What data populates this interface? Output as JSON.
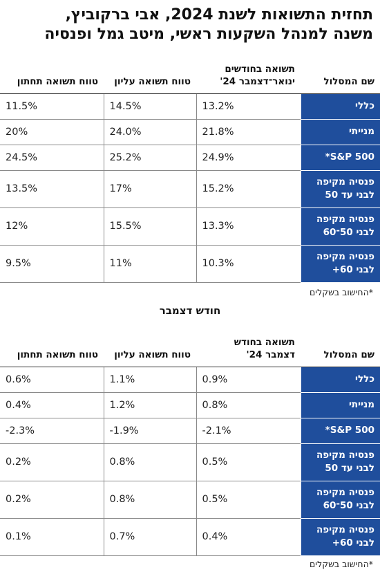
{
  "headline": {
    "line1": "תחזית התשואות לשנת 2024, אבי ברקוביץ,",
    "line2": "משנה למנהל השקעות ראשי, מיטב גמל ופנסיה"
  },
  "table1": {
    "headers": {
      "name": "שם המסלול",
      "return": "תשואה בחודשים ינואר־דצמבר 24'",
      "high": "טווח תשואה עליון",
      "low": "טווח תשואה תחתון"
    },
    "rows": [
      {
        "name": "כללי",
        "return": "13.2%",
        "high": "14.5%",
        "low": "11.5%"
      },
      {
        "name": "מנייתי",
        "return": "21.8%",
        "high": "24.0%",
        "low": "20%"
      },
      {
        "name": "S&P 500*",
        "return": "24.9%",
        "high": "25.2%",
        "low": "24.5%"
      },
      {
        "name": "פנסיה מקיפה לבני עד 50",
        "return": "15.2%",
        "high": "17%",
        "low": "13.5%"
      },
      {
        "name": "פנסיה מקיפה לבני 50־60",
        "return": "13.3%",
        "high": "15.5%",
        "low": "12%"
      },
      {
        "name": "פנסיה מקיפה לבני 60+",
        "return": "10.3%",
        "high": "11%",
        "low": "9.5%"
      }
    ],
    "note": "*החישוב בשקלים"
  },
  "section2_title": "חודש דצמבר",
  "table2": {
    "headers": {
      "name": "שם המסלול",
      "return": "תשואה בחודש דצמבר 24'",
      "high": "טווח תשואה עליון",
      "low": "טווח תשואה תחתון"
    },
    "rows": [
      {
        "name": "כללי",
        "return": "0.9%",
        "high": "1.1%",
        "low": "0.6%"
      },
      {
        "name": "מנייתי",
        "return": "0.8%",
        "high": "1.2%",
        "low": "0.4%"
      },
      {
        "name": "S&P 500*",
        "return": "-2.1%",
        "high": "-1.9%",
        "low": "-2.3%"
      },
      {
        "name": "פנסיה מקיפה לבני עד 50",
        "return": "0.5%",
        "high": "0.8%",
        "low": "0.2%"
      },
      {
        "name": "פנסיה מקיפה לבני 50־60",
        "return": "0.5%",
        "high": "0.8%",
        "low": "0.2%"
      },
      {
        "name": "פנסיה מקיפה לבני 60+",
        "return": "0.4%",
        "high": "0.7%",
        "low": "0.1%"
      }
    ],
    "note": "*החישוב בשקלים"
  },
  "colors": {
    "name_cell_bg": "#1f4e9c",
    "name_cell_text": "#ffffff",
    "grid_border": "#8a8a8a"
  }
}
